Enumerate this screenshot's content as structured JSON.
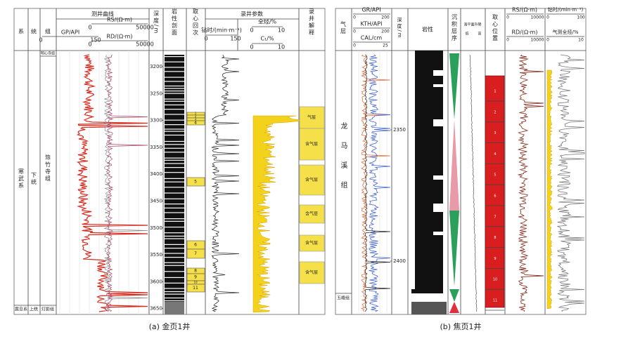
{
  "panel_a": {
    "caption": "(a) 金页1井",
    "headers": {
      "system": "系",
      "series": "统",
      "formation": "组",
      "logs": "测井曲线",
      "depth": "深度/m",
      "lithology": "岩性剖面",
      "core": "取心回次",
      "mud_logging": "录井参数",
      "interpretation": "录井解释"
    },
    "log_scales": [
      {
        "name": "GP/API",
        "min": "0",
        "max": "150"
      },
      {
        "name": "RS/(Ω·m)",
        "min": "0",
        "max": "50000"
      },
      {
        "name": "RD/(Ω·m)",
        "min": "0",
        "max": "50000"
      }
    ],
    "mud_scales": [
      {
        "name": "钻时/(min·m⁻¹)",
        "min": "0",
        "max": "150"
      },
      {
        "name": "全烃/%",
        "min": "0",
        "max": "10"
      },
      {
        "name": "C₁/%",
        "min": "0",
        "max": "10"
      }
    ],
    "strat": {
      "system": "寒武系",
      "series": "下统",
      "formation": "筇竹寺组",
      "top_formation": "明心寺组",
      "bottom_system": "震旦系",
      "bottom_series": "上统",
      "bottom_formation": "灯影组"
    },
    "depth_ticks": [
      "3200",
      "3250",
      "3300",
      "3350",
      "3400",
      "3450",
      "3500",
      "3550",
      "3600",
      "3650"
    ],
    "core_runs": [
      "1",
      "2",
      "3",
      "4",
      "5",
      "6",
      "7",
      "8",
      "9",
      "10",
      "11"
    ],
    "interpretation": [
      "气层",
      "含气层",
      "含气层",
      "含气层",
      "含气层",
      "含气层"
    ]
  },
  "panel_b": {
    "caption": "(b) 焦页1井",
    "headers": {
      "gas_layer": "气层",
      "depth": "深度/m",
      "lithology": "岩性",
      "sequence": "沉积层序",
      "sea_level": "海平面升降",
      "sea_low": "低",
      "sea_high": "高",
      "core": "取心位置"
    },
    "log_scales": [
      {
        "name": "GR/API",
        "min": "0",
        "max": "200"
      },
      {
        "name": "KTH/API",
        "min": "0",
        "max": "200"
      },
      {
        "name": "CAL/cm",
        "min": "0",
        "max": "25"
      }
    ],
    "res_scales": [
      {
        "name": "RS/(Ω·m)",
        "min": "0",
        "max": "10000"
      },
      {
        "name": "RD/(Ω·m)",
        "min": "0",
        "max": "10000"
      }
    ],
    "mud_scales": [
      {
        "name": "钻时/(min·m⁻¹)",
        "min": "0",
        "max": "100"
      },
      {
        "name": "气测全烃/%",
        "min": "0",
        "max": "10"
      }
    ],
    "formation": "龙马溪组",
    "bottom_formation": "五峰组",
    "depth_ticks": [
      "2350",
      "2400"
    ],
    "core_runs": [
      "1",
      "2",
      "3",
      "4",
      "5",
      "6",
      "7",
      "8",
      "9",
      "10",
      "11"
    ]
  }
}
